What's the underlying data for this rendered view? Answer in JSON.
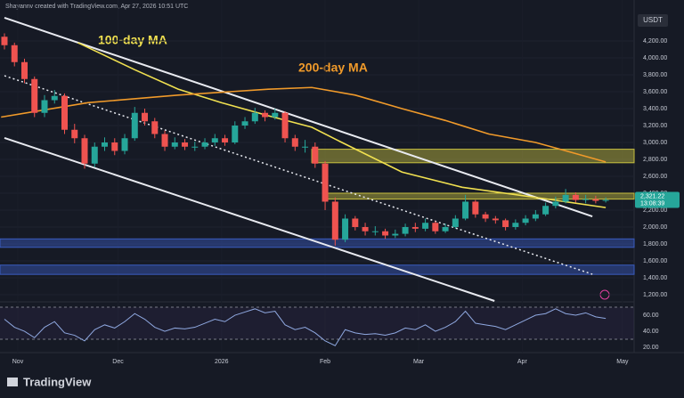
{
  "header": "Shayannv created with TradingView.com, Apr 27, 2026 10:51 UTC",
  "footer": "TradingView",
  "chart_data": {
    "type": "candlestick",
    "currency": "USDT",
    "last_price_label": "2,321.22",
    "countdown": "13:08:39",
    "up_color": "#26a69a",
    "down_color": "#ef5350",
    "xlim": [
      -5.33,
      184.5
    ],
    "xticks": [
      {
        "value": 0,
        "label": "Nov"
      },
      {
        "value": 30,
        "label": "Dec"
      },
      {
        "value": 61,
        "label": "2026"
      },
      {
        "value": 92,
        "label": "Feb"
      },
      {
        "value": 120,
        "label": "Mar"
      },
      {
        "value": 151,
        "label": "Apr"
      },
      {
        "value": 181,
        "label": "May"
      }
    ],
    "ylim": [
      1126,
      4537
    ],
    "yticks": [
      {
        "value": 1200,
        "label": "1,200.00"
      },
      {
        "value": 1400,
        "label": "1,400.00"
      },
      {
        "value": 1600,
        "label": "1,600.00"
      },
      {
        "value": 1800,
        "label": "1,800.00"
      },
      {
        "value": 2000,
        "label": "2,000.00"
      },
      {
        "value": 2200,
        "label": "2,200.00"
      },
      {
        "value": 2400,
        "label": "2,400.00"
      },
      {
        "value": 2600,
        "label": "2,600.00"
      },
      {
        "value": 2800,
        "label": "2,800.00"
      },
      {
        "value": 3000,
        "label": "3,000.00"
      },
      {
        "value": 3200,
        "label": "3,200.00"
      },
      {
        "value": 3400,
        "label": "3,400.00"
      },
      {
        "value": 3600,
        "label": "3,600.00"
      },
      {
        "value": 3800,
        "label": "3,800.00"
      },
      {
        "value": 4000,
        "label": "4,000.00"
      },
      {
        "value": 4200,
        "label": "4,200.00"
      }
    ],
    "grid": true,
    "x": [
      -4,
      -1,
      2,
      5,
      8,
      11,
      14,
      17,
      20,
      23,
      26,
      29,
      32,
      35,
      38,
      41,
      44,
      47,
      50,
      53,
      56,
      59,
      62,
      65,
      68,
      71,
      74,
      77,
      80,
      83,
      86,
      89,
      92,
      95,
      98,
      101,
      104,
      107,
      110,
      113,
      116,
      119,
      122,
      125,
      128,
      131,
      134,
      137,
      140,
      143,
      146,
      149,
      152,
      155,
      158,
      161,
      164,
      167,
      170,
      173,
      176
    ],
    "open": [
      4250,
      4150,
      3950,
      3750,
      3350,
      3500,
      3550,
      3150,
      3050,
      2750,
      2950,
      3000,
      2900,
      3050,
      3350,
      3250,
      3100,
      2950,
      3000,
      2950,
      2950,
      3000,
      3050,
      3000,
      3200,
      3250,
      3350,
      3300,
      3350,
      3050,
      2950,
      2950,
      2750,
      2300,
      1850,
      2100,
      2000,
      1950,
      1950,
      1900,
      1920,
      2000,
      1980,
      2050,
      1950,
      2000,
      2100,
      2300,
      2150,
      2100,
      2080,
      2000,
      2050,
      2100,
      2150,
      2250,
      2300,
      2380,
      2320,
      2330,
      2310
    ],
    "high": [
      4290,
      4180,
      3990,
      3780,
      3560,
      3620,
      3580,
      3220,
      3090,
      3000,
      3060,
      3050,
      3100,
      3420,
      3400,
      3290,
      3140,
      3060,
      3040,
      3010,
      3050,
      3100,
      3090,
      3250,
      3300,
      3410,
      3380,
      3400,
      3370,
      3090,
      3030,
      3000,
      2780,
      2350,
      2150,
      2130,
      2050,
      2010,
      1980,
      1970,
      2040,
      2050,
      2100,
      2070,
      2040,
      2140,
      2380,
      2320,
      2180,
      2130,
      2100,
      2090,
      2140,
      2200,
      2290,
      2360,
      2450,
      2410,
      2380,
      2370,
      2350
    ],
    "low": [
      4100,
      3900,
      3700,
      3300,
      3300,
      3460,
      3100,
      2990,
      2690,
      2710,
      2900,
      2850,
      2860,
      3020,
      3200,
      3050,
      2900,
      2920,
      2910,
      2900,
      2920,
      2960,
      2960,
      2980,
      3160,
      3220,
      3250,
      3270,
      3000,
      2900,
      2880,
      2700,
      2200,
      1780,
      1820,
      1960,
      1900,
      1900,
      1860,
      1870,
      1890,
      1940,
      1950,
      1920,
      1930,
      1980,
      2080,
      2110,
      2060,
      2040,
      1960,
      1970,
      2020,
      2070,
      2130,
      2220,
      2280,
      2290,
      2280,
      2280,
      2290
    ],
    "close": [
      4150,
      3950,
      3750,
      3350,
      3500,
      3550,
      3150,
      3050,
      2750,
      2950,
      3000,
      2900,
      3050,
      3350,
      3250,
      3100,
      2950,
      3000,
      2950,
      2950,
      3000,
      3050,
      3000,
      3200,
      3250,
      3350,
      3300,
      3350,
      3050,
      2950,
      2950,
      2750,
      2300,
      1850,
      2100,
      2000,
      1950,
      1950,
      1900,
      1920,
      2000,
      1980,
      2050,
      1950,
      2000,
      2100,
      2300,
      2150,
      2100,
      2080,
      2000,
      2050,
      2100,
      2150,
      2250,
      2300,
      2380,
      2320,
      2330,
      2310,
      2321
    ],
    "series": [
      {
        "name": "100-day MA",
        "color": "#f0e050",
        "x": [
          18,
          35,
          48,
          61,
          75,
          88,
          96,
          115,
          133,
          155,
          176
        ],
        "values": [
          4180,
          3860,
          3630,
          3470,
          3316,
          3180,
          3020,
          2650,
          2470,
          2350,
          2230
        ]
      },
      {
        "name": "200-day MA",
        "color": "#f09a2a",
        "x": [
          -5,
          21,
          48,
          75,
          88,
          101,
          115,
          128,
          141,
          155,
          176
        ],
        "values": [
          3300,
          3470,
          3560,
          3630,
          3650,
          3560,
          3400,
          3260,
          3100,
          3000,
          2770
        ]
      }
    ],
    "zones": [
      {
        "start": 88,
        "low": 2760,
        "high": 2920,
        "color": "#c8c040"
      },
      {
        "start": 92,
        "low": 2330,
        "high": 2400,
        "color": "#c8c040"
      },
      {
        "start": -5.33,
        "low": 1760,
        "high": 1860,
        "color": "#3a5cc0"
      },
      {
        "start": -5.33,
        "low": 1440,
        "high": 1550,
        "color": "#3a5cc0"
      }
    ],
    "trendlines": [
      {
        "x": [
          -4,
          172
        ],
        "y": [
          4474,
          2126
        ],
        "style": "solid"
      },
      {
        "x": [
          -4,
          142.7
        ],
        "y": [
          3053,
          1126
        ],
        "style": "solid"
      },
      {
        "x": [
          -4,
          172
        ],
        "y": [
          3789,
          1442
        ],
        "style": "dotted"
      }
    ],
    "rsi": {
      "color": "#8fa8e0",
      "ylim": [
        15.6,
        75.6
      ],
      "yticks": [
        {
          "value": 20,
          "label": "20.00"
        },
        {
          "value": 40,
          "label": "40.00"
        },
        {
          "value": 60,
          "label": "60.00"
        }
      ],
      "levels": [
        70,
        30
      ],
      "values": [
        55,
        45,
        40,
        32,
        45,
        52,
        38,
        35,
        28,
        42,
        48,
        44,
        52,
        62,
        55,
        45,
        40,
        44,
        43,
        45,
        50,
        55,
        52,
        60,
        64,
        68,
        63,
        65,
        48,
        42,
        45,
        38,
        28,
        22,
        42,
        38,
        36,
        37,
        35,
        38,
        44,
        42,
        48,
        40,
        45,
        52,
        65,
        50,
        48,
        46,
        42,
        48,
        54,
        60,
        62,
        68,
        62,
        60,
        63,
        58,
        56
      ]
    }
  }
}
